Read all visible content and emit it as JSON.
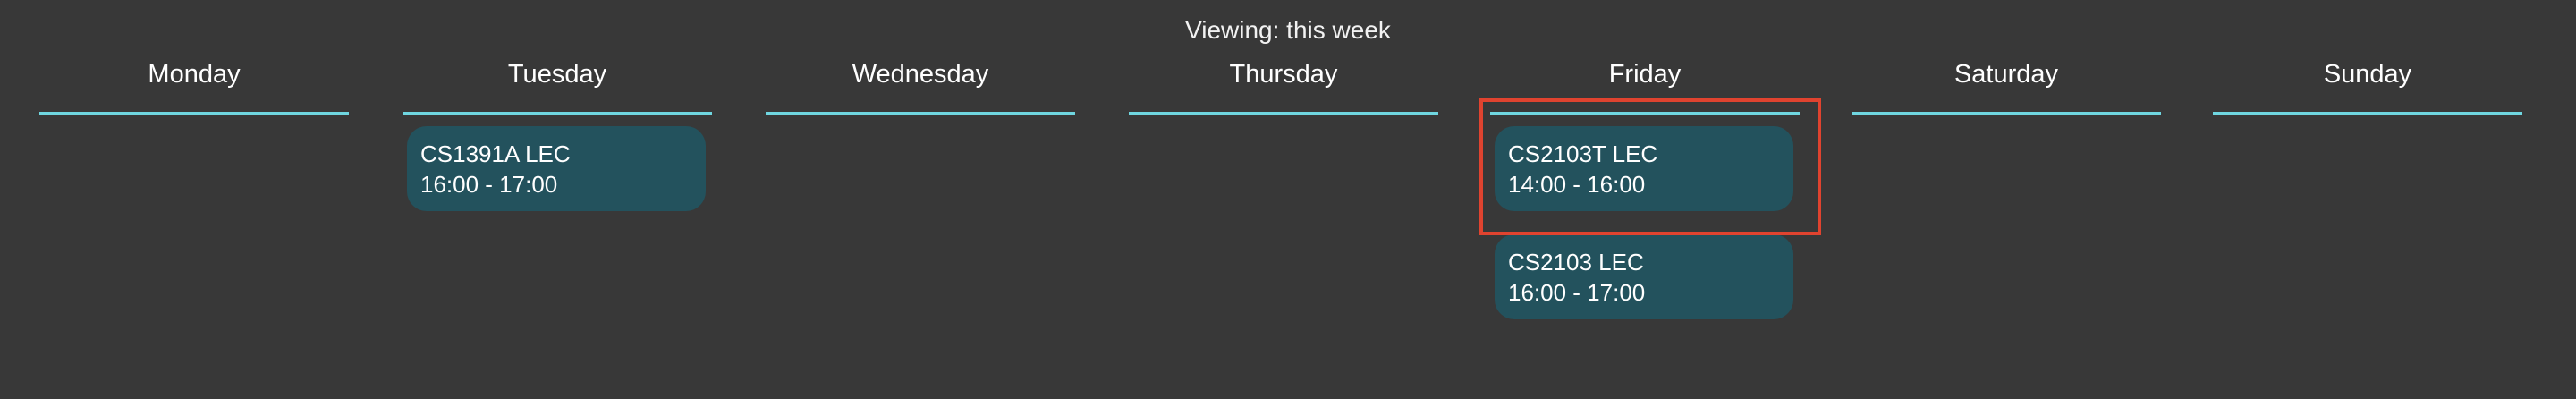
{
  "view": {
    "title": "Viewing: this week"
  },
  "days": [
    {
      "label": "Monday"
    },
    {
      "label": "Tuesday"
    },
    {
      "label": "Wednesday"
    },
    {
      "label": "Thursday"
    },
    {
      "label": "Friday"
    },
    {
      "label": "Saturday"
    },
    {
      "label": "Sunday"
    }
  ],
  "events": {
    "tuesday": [
      {
        "title": "CS1391A LEC",
        "time": "16:00 - 17:00"
      }
    ],
    "friday": [
      {
        "title": "CS2103T LEC",
        "time": "14:00 - 16:00"
      },
      {
        "title": "CS2103 LEC",
        "time": "16:00 - 17:00"
      }
    ]
  },
  "colors": {
    "background": "#383838",
    "day_rule": "#6fd6e0",
    "event_fill": "#23525d",
    "highlight": "#e0432f"
  }
}
